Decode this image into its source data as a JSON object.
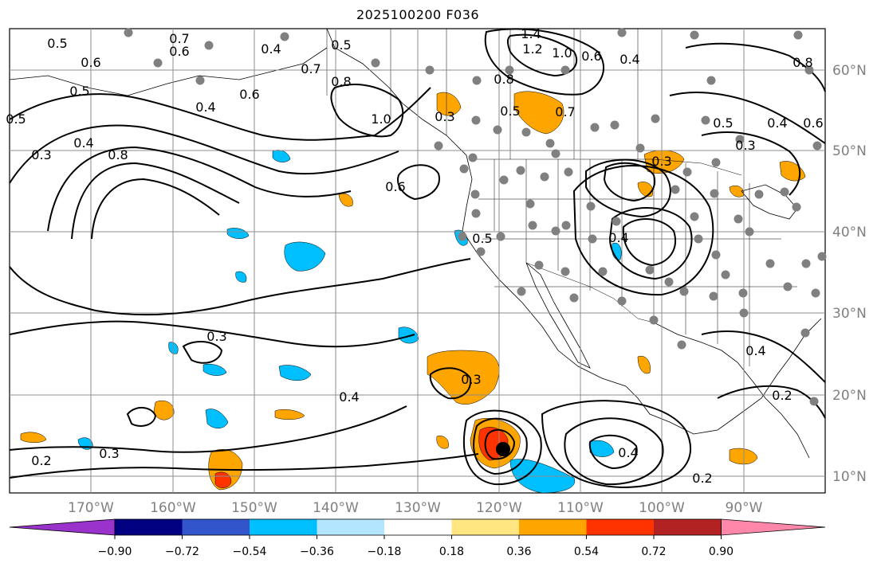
{
  "title": "2025100200 F036",
  "colors": {
    "land_outline": "#000000",
    "contour": "#000000",
    "grid": "#8c8c8c",
    "station_marker": "#808080",
    "storm_marker": "#000000"
  },
  "map": {
    "lon_ticks": [
      "170°W",
      "160°W",
      "150°W",
      "140°W",
      "130°W",
      "120°W",
      "110°W",
      "100°W",
      "90°W"
    ],
    "lat_ticks": [
      "60°N",
      "50°N",
      "40°N",
      "30°N",
      "20°N",
      "10°N"
    ],
    "contour_labels": [
      "0.5",
      "0.7",
      "0.6",
      "0.4",
      "0.5",
      "0.6",
      "0.5",
      "0.4",
      "0.3",
      "0.8",
      "0.6",
      "0.5",
      "0.4",
      "0.7",
      "0.8",
      "1.0",
      "1.4",
      "1.2",
      "1.0",
      "0.6",
      "0.4",
      "0.8",
      "0.5",
      "0.7",
      "0.3",
      "0.8",
      "0.6",
      "0.5",
      "0.4",
      "0.3",
      "0.6",
      "0.5",
      "0.4",
      "0.3",
      "0.4",
      "0.3",
      "0.2",
      "0.4",
      "0.3",
      "0.2",
      "0.4",
      "0.3",
      "0.2"
    ],
    "station_count": 80,
    "storm_marker": "tropical-cyclone-position"
  },
  "colorbar": {
    "colors": [
      "#9933cc",
      "#000080",
      "#3355cc",
      "#00bfff",
      "#b3e5ff",
      "#ffffff",
      "#ffe680",
      "#ffa500",
      "#ff3300",
      "#b22222",
      "#ff88aa"
    ],
    "labels": [
      "−0.90",
      "−0.72",
      "−0.54",
      "−0.36",
      "−0.18",
      "0.18",
      "0.36",
      "0.54",
      "0.72",
      "0.90"
    ]
  }
}
